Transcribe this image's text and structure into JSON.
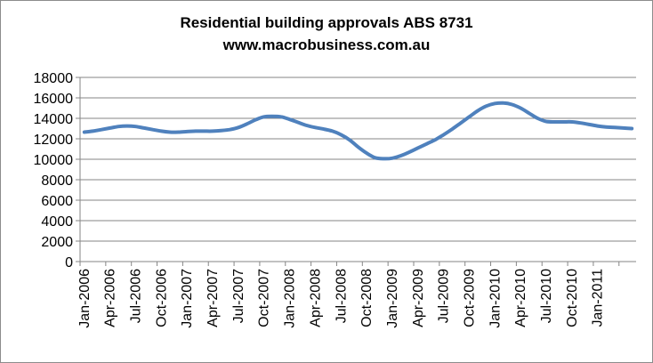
{
  "chart_data": {
    "type": "line",
    "title": "Residential building approvals ABS 8731",
    "subtitle": "www.macrobusiness.com.au",
    "xlabel": "",
    "ylabel": "",
    "ylim": [
      0,
      18000
    ],
    "yticks": [
      0,
      2000,
      4000,
      6000,
      8000,
      10000,
      12000,
      14000,
      16000,
      18000
    ],
    "grid": true,
    "legend": "none",
    "colors": {
      "series": "#4f81bd",
      "grid": "#868686",
      "axis": "#868686",
      "frame": "#8c8c8c"
    },
    "x": [
      "Jan-2006",
      "Feb-2006",
      "Mar-2006",
      "Apr-2006",
      "May-2006",
      "Jun-2006",
      "Jul-2006",
      "Aug-2006",
      "Sep-2006",
      "Oct-2006",
      "Nov-2006",
      "Dec-2006",
      "Jan-2007",
      "Feb-2007",
      "Mar-2007",
      "Apr-2007",
      "May-2007",
      "Jun-2007",
      "Jul-2007",
      "Aug-2007",
      "Sep-2007",
      "Oct-2007",
      "Nov-2007",
      "Dec-2007",
      "Jan-2008",
      "Feb-2008",
      "Mar-2008",
      "Apr-2008",
      "May-2008",
      "Jun-2008",
      "Jul-2008",
      "Aug-2008",
      "Sep-2008",
      "Oct-2008",
      "Nov-2008",
      "Dec-2008",
      "Jan-2009",
      "Feb-2009",
      "Mar-2009",
      "Apr-2009",
      "May-2009",
      "Jun-2009",
      "Jul-2009",
      "Aug-2009",
      "Sep-2009",
      "Oct-2009",
      "Nov-2009",
      "Dec-2009",
      "Jan-2010",
      "Feb-2010",
      "Mar-2010",
      "Apr-2010",
      "May-2010",
      "Jun-2010",
      "Jul-2010",
      "Aug-2010",
      "Sep-2010",
      "Oct-2010",
      "Nov-2010",
      "Dec-2010",
      "Jan-2011",
      "Feb-2011",
      "Mar-2011",
      "Apr-2011",
      "May-2011"
    ],
    "xtick_labels": [
      "Jan-2006",
      "Apr-2006",
      "Jul-2006",
      "Oct-2006",
      "Jan-2007",
      "Apr-2007",
      "Jul-2007",
      "Oct-2007",
      "Jan-2008",
      "Apr-2008",
      "Jul-2008",
      "Oct-2008",
      "Jan-2009",
      "Apr-2009",
      "Jul-2009",
      "Oct-2009",
      "Jan-2010",
      "Apr-2010",
      "Jul-2010",
      "Oct-2010",
      "Jan-2011"
    ],
    "series": [
      {
        "values": [
          12650,
          12750,
          12900,
          13050,
          13200,
          13250,
          13200,
          13050,
          12900,
          12750,
          12650,
          12650,
          12700,
          12750,
          12750,
          12750,
          12800,
          12900,
          13100,
          13450,
          13850,
          14150,
          14200,
          14150,
          13900,
          13600,
          13300,
          13100,
          12950,
          12750,
          12400,
          11900,
          11200,
          10600,
          10150,
          10050,
          10100,
          10350,
          10700,
          11100,
          11500,
          11900,
          12400,
          12950,
          13550,
          14150,
          14750,
          15200,
          15450,
          15500,
          15350,
          15000,
          14500,
          14000,
          13700,
          13650,
          13650,
          13650,
          13550,
          13400,
          13250,
          13150,
          13100,
          13050,
          13000
        ]
      }
    ]
  }
}
